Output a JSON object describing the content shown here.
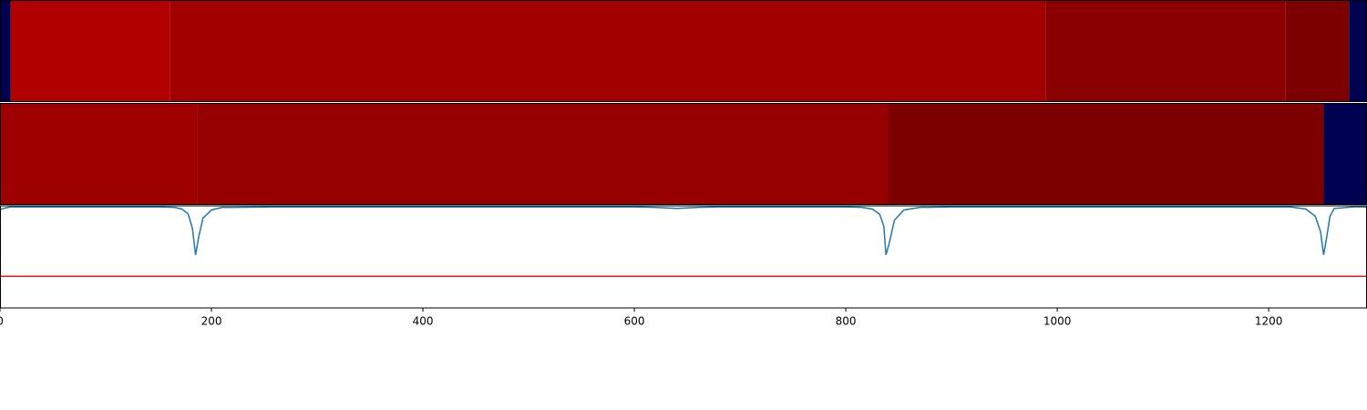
{
  "chart_data": [
    {
      "type": "strip",
      "xlim": [
        0,
        1293
      ],
      "segments": [
        {
          "start": 0,
          "end": 10,
          "color": "#000050"
        },
        {
          "start": 10,
          "end": 161,
          "color": "#b00000"
        },
        {
          "start": 161,
          "end": 989,
          "color": "#a20000"
        },
        {
          "start": 989,
          "end": 1216,
          "color": "#8a0000"
        },
        {
          "start": 1216,
          "end": 1276,
          "color": "#7d0000"
        },
        {
          "start": 1276,
          "end": 1293,
          "color": "#000050"
        }
      ]
    },
    {
      "type": "strip",
      "xlim": [
        0,
        1293
      ],
      "segments": [
        {
          "start": 0,
          "end": 187,
          "color": "#9e0000"
        },
        {
          "start": 187,
          "end": 840,
          "color": "#960000"
        },
        {
          "start": 840,
          "end": 1252,
          "color": "#7d0000"
        },
        {
          "start": 1252,
          "end": 1293,
          "color": "#000050"
        }
      ]
    },
    {
      "type": "line",
      "xlim": [
        0,
        1293
      ],
      "ylim": [
        0,
        1
      ],
      "color": "#1f77b4",
      "xticks": [
        0,
        200,
        400,
        600,
        800,
        1000,
        1200
      ],
      "hline": 0.31,
      "hline_color": "#e41a1c",
      "x": [
        0,
        5,
        10,
        20,
        40,
        100,
        150,
        165,
        172,
        178,
        182,
        185,
        188,
        192,
        200,
        210,
        260,
        400,
        600,
        620,
        640,
        660,
        680,
        750,
        800,
        815,
        825,
        832,
        836,
        838,
        841,
        846,
        855,
        870,
        900,
        1000,
        1100,
        1200,
        1220,
        1235,
        1244,
        1249,
        1252,
        1255,
        1258,
        1262,
        1280,
        1293
      ],
      "values": [
        0.964,
        0.98,
        0.99,
        0.99,
        0.99,
        0.99,
        0.99,
        0.985,
        0.97,
        0.92,
        0.78,
        0.52,
        0.7,
        0.88,
        0.96,
        0.985,
        0.99,
        0.99,
        0.99,
        0.985,
        0.975,
        0.985,
        0.99,
        0.99,
        0.99,
        0.985,
        0.97,
        0.92,
        0.8,
        0.52,
        0.63,
        0.86,
        0.96,
        0.985,
        0.99,
        0.99,
        0.99,
        0.99,
        0.99,
        0.97,
        0.9,
        0.75,
        0.52,
        0.7,
        0.9,
        0.975,
        0.99,
        0.99
      ]
    }
  ]
}
